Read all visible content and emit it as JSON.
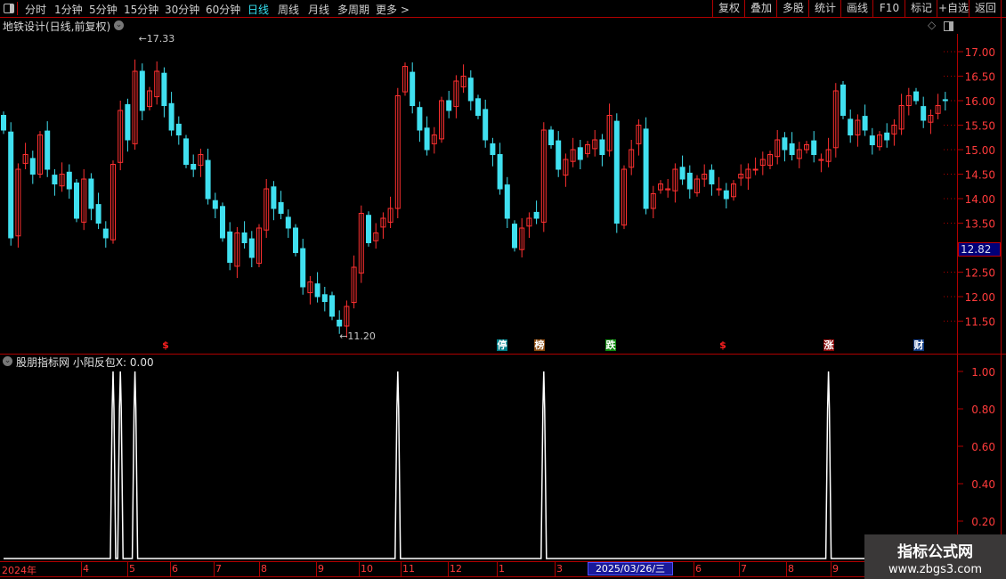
{
  "toolbar": {
    "periods": [
      "分时",
      "1分钟",
      "5分钟",
      "15分钟",
      "30分钟",
      "60分钟",
      "日线",
      "周线",
      "月线",
      "多周期",
      "更多 >"
    ],
    "active_period": "日线",
    "right_buttons": [
      "复权",
      "叠加",
      "多股",
      "统计",
      "画线",
      "F10",
      "标记",
      "+自选",
      "返回"
    ]
  },
  "main_chart": {
    "title": "地铁设计(日线,前复权)",
    "high_label": "17.33",
    "low_label": "11.20",
    "current_price": "12.82",
    "y_ticks": [
      "17.00",
      "16.50",
      "16.00",
      "15.50",
      "15.00",
      "14.50",
      "14.00",
      "13.50",
      "12.50",
      "12.00",
      "11.50"
    ],
    "markers": [
      {
        "text": "$",
        "color": "#ff2020",
        "bg": "transparent"
      },
      {
        "text": "停",
        "color": "#ffffff",
        "bg": "#00808a"
      },
      {
        "text": "榜",
        "color": "#ffffff",
        "bg": "#8a4a10"
      },
      {
        "text": "跌",
        "color": "#ffffff",
        "bg": "#108a10"
      },
      {
        "text": "$",
        "color": "#ff2020",
        "bg": "transparent"
      },
      {
        "text": "涨",
        "color": "#ffffff",
        "bg": "#8a0a0a"
      },
      {
        "text": "财",
        "color": "#ffffff",
        "bg": "#103a80"
      }
    ],
    "colors": {
      "up": "#ff3030",
      "down": "#40e0f0",
      "axis": "#ff3b3b",
      "grid": "#b00000"
    }
  },
  "indicator": {
    "title": "股朋指标网 小阳反包X: 0.00",
    "y_ticks": [
      "1.00",
      "0.80",
      "0.60",
      "0.40",
      "0.20"
    ]
  },
  "time_axis": {
    "labels": [
      "2024年",
      "4",
      "5",
      "6",
      "7",
      "8",
      "9",
      "10",
      "11",
      "12",
      "1",
      "3",
      "6",
      "7",
      "8",
      "9"
    ],
    "cursor_date": "2025/03/26/三"
  },
  "watermark": {
    "line1": "指标公式网",
    "line2": "www.zbgs3.com"
  },
  "chart_data": [
    {
      "type": "candlestick",
      "title": "地铁设计(日线,前复权)",
      "ylim": [
        11.2,
        17.33
      ],
      "closes": [
        15.4,
        13.2,
        14.6,
        14.9,
        14.5,
        15.3,
        14.6,
        14.3,
        14.5,
        14.2,
        13.6,
        14.4,
        13.8,
        13.5,
        13.2,
        14.7,
        15.8,
        15.2,
        16.6,
        15.8,
        16.2,
        16.6,
        15.9,
        15.4,
        15.3,
        14.7,
        14.6,
        14.9,
        14.0,
        13.8,
        13.2,
        12.7,
        13.3,
        13.1,
        12.8,
        13.4,
        14.2,
        13.8,
        13.7,
        13.4,
        12.9,
        12.2,
        12.3,
        12.0,
        11.9,
        11.6,
        11.4,
        11.8,
        12.6,
        13.7,
        13.1,
        13.3,
        13.6,
        13.8,
        16.1,
        16.7,
        15.9,
        15.4,
        15.0,
        15.3,
        16.0,
        15.8,
        16.4,
        16.5,
        16.0,
        15.7,
        15.2,
        14.9,
        14.2,
        13.6,
        13.0,
        13.4,
        13.6,
        13.6,
        15.4,
        15.1,
        14.6,
        14.8,
        15.0,
        14.8,
        15.1,
        15.2,
        14.9,
        15.7,
        13.5,
        14.6,
        15.0,
        15.5,
        13.8,
        14.1,
        14.3,
        14.2,
        14.6,
        14.4,
        14.2,
        14.4,
        14.5,
        14.3,
        14.2,
        14.0,
        14.3,
        14.5,
        14.6,
        14.6,
        14.8,
        14.9,
        15.2,
        15.0,
        14.9,
        15.0,
        15.1,
        14.9,
        14.8,
        15.0,
        16.2,
        15.7,
        15.3,
        15.6,
        15.4,
        15.1,
        15.3,
        15.2,
        15.5,
        15.9,
        16.1,
        16.0,
        15.6,
        15.7,
        15.9,
        16.0
      ]
    },
    {
      "type": "line",
      "title": "小阳反包X",
      "ylim": [
        0,
        1.0
      ],
      "signal_bar_indices": [
        15,
        16,
        18,
        54,
        74,
        113
      ],
      "signal_value": 1.0
    }
  ]
}
